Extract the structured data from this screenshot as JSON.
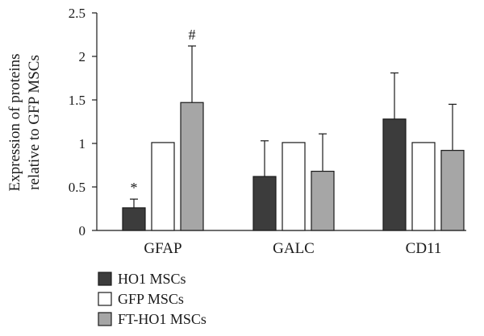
{
  "chart_data": {
    "type": "bar",
    "title": "",
    "ylabel_lines": [
      "Expression of proteins",
      "relative to GFP MSCs"
    ],
    "xlabel": "",
    "ylim": [
      0,
      2.5
    ],
    "yticks": [
      0,
      0.5,
      1,
      1.5,
      2,
      2.5
    ],
    "ytick_labels": [
      "0",
      "0.5",
      "1",
      "1.5",
      "2",
      "2.5"
    ],
    "grid": false,
    "legend_position": "bottom-left",
    "categories": [
      "GFAP",
      "GALC",
      "CD11"
    ],
    "series": [
      {
        "name": "HO1 MSCs",
        "color": "#3c3c3c",
        "values": [
          0.26,
          0.62,
          1.28
        ],
        "error": [
          0.1,
          0.41,
          0.53
        ],
        "annotations": [
          "*",
          "",
          ""
        ]
      },
      {
        "name": "GFP MSCs",
        "color": "#ffffff",
        "values": [
          1.01,
          1.01,
          1.01
        ],
        "error": [
          0,
          0,
          0
        ],
        "annotations": [
          "",
          "",
          ""
        ]
      },
      {
        "name": "FT-HO1 MSCs",
        "color": "#a6a6a6",
        "values": [
          1.47,
          0.68,
          0.92
        ],
        "error": [
          0.65,
          0.43,
          0.53
        ],
        "annotations": [
          "#",
          "",
          ""
        ]
      }
    ]
  }
}
